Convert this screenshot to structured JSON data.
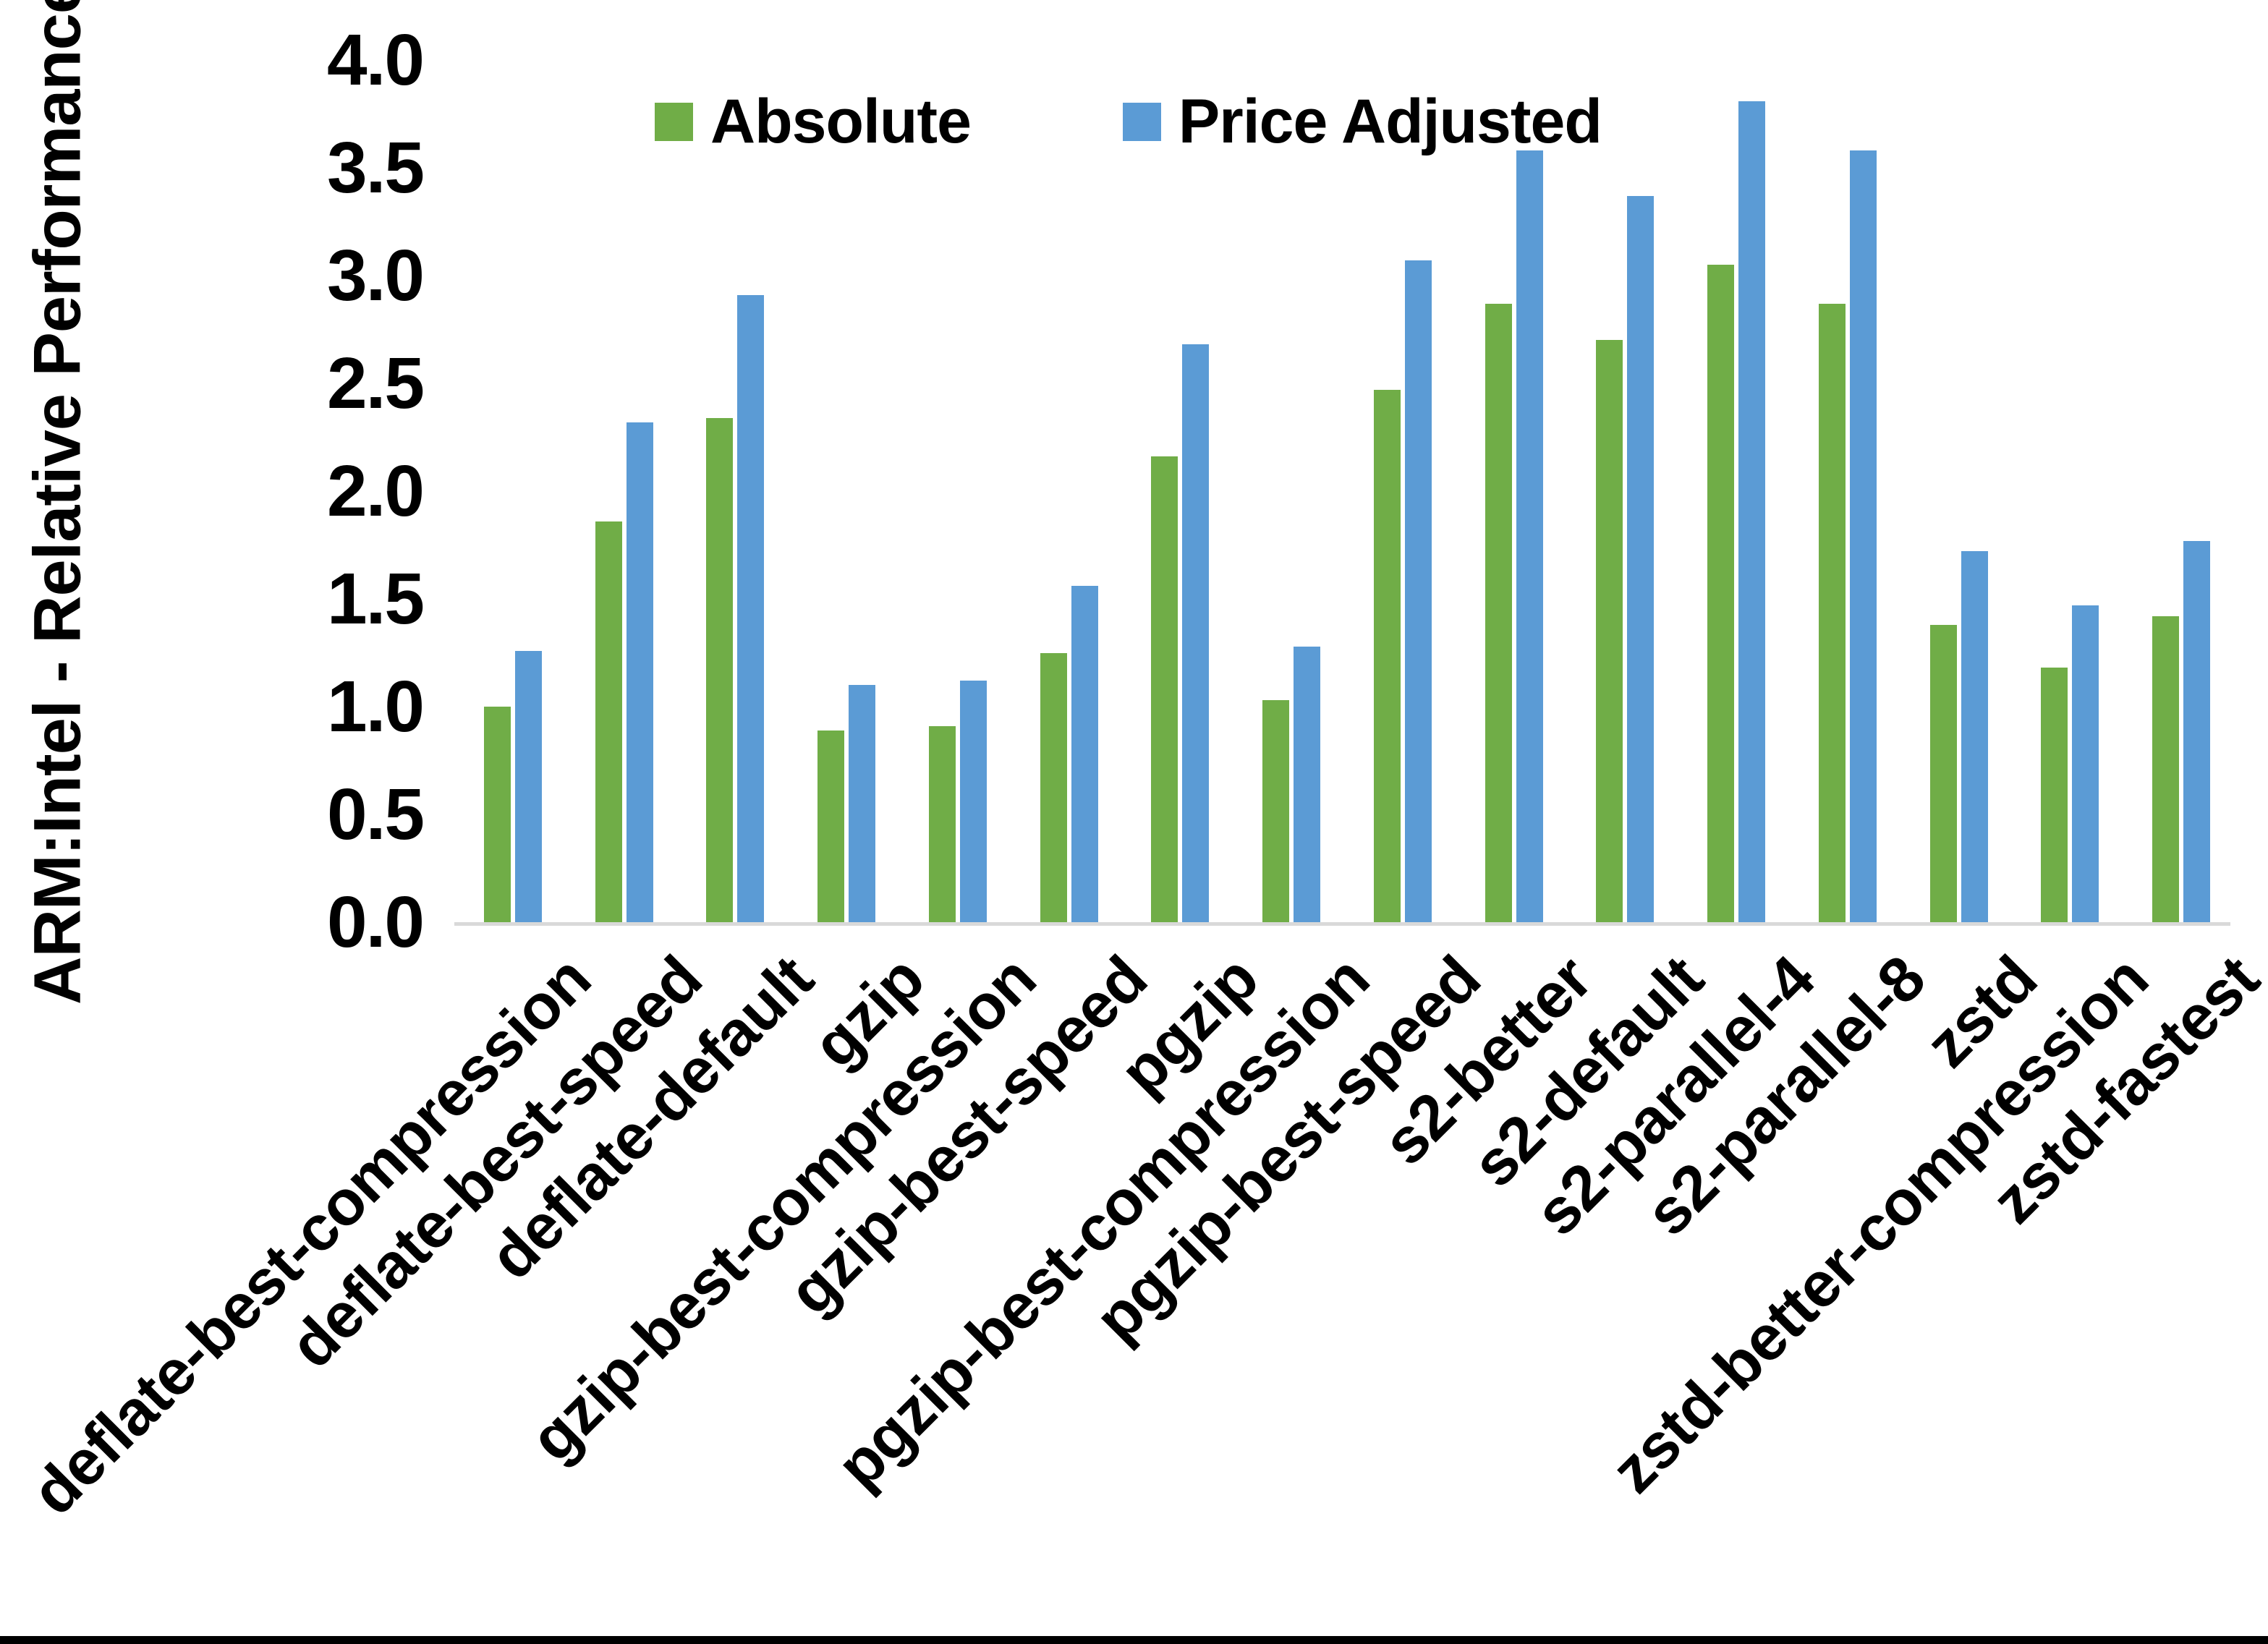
{
  "chart_data": {
    "type": "bar",
    "title": "",
    "xlabel": "",
    "ylabel": "ARM:Intel - Relative Performance",
    "ylim": [
      0.0,
      4.0
    ],
    "ytick_step": 0.5,
    "ytick_labels": [
      "0.0",
      "0.5",
      "1.0",
      "1.5",
      "2.0",
      "2.5",
      "3.0",
      "3.5",
      "4.0"
    ],
    "grid": false,
    "legend_position": "top-center",
    "x_label_rotation_deg": 45,
    "categories": [
      "deflate-best-compression",
      "deflate-best-speed",
      "deflate-default",
      "gzip",
      "gzip-best-compression",
      "gzip-best-speed",
      "pgzip",
      "pgzip-best-compression",
      "pgzip-best-speed",
      "s2-better",
      "s2-default",
      "s2-parallel-4",
      "s2-parallel-8",
      "zstd",
      "zstd-better-compression",
      "zstd-fastest"
    ],
    "series": [
      {
        "name": "Absolute",
        "color": "#70AD47",
        "values": [
          1.0,
          1.86,
          2.34,
          0.89,
          0.91,
          1.25,
          2.16,
          1.03,
          2.47,
          2.87,
          2.7,
          3.05,
          2.87,
          1.38,
          1.18,
          1.42
        ]
      },
      {
        "name": "Price Adjusted",
        "color": "#5B9BD5",
        "values": [
          1.26,
          2.32,
          2.91,
          1.1,
          1.12,
          1.56,
          2.68,
          1.28,
          3.07,
          3.58,
          3.37,
          3.81,
          3.58,
          1.72,
          1.47,
          1.77
        ]
      }
    ]
  },
  "colors": {
    "background": "#FFFFFF",
    "axis_line": "#D9D9D9",
    "text": "#000000",
    "bottom_border": "#000000"
  }
}
